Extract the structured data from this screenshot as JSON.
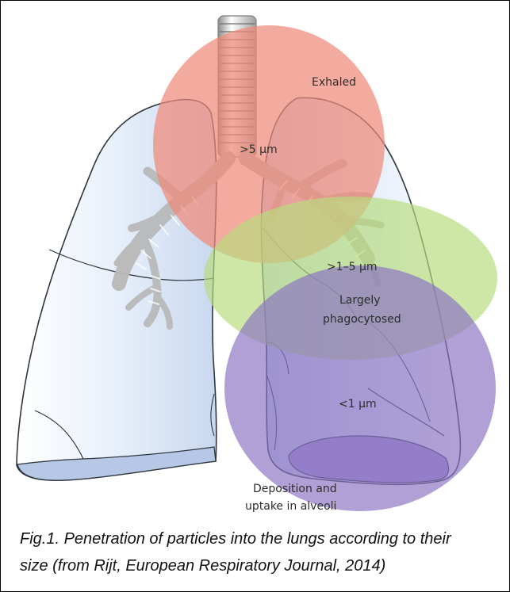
{
  "figure": {
    "labels": {
      "exhaled": "Exhaled",
      "large_size": ">5 µm",
      "medium_size": ">1–5 µm",
      "largely_phagocytosed": [
        "Largely",
        "phagocytosed"
      ],
      "small_size": "<1 µm",
      "deposition": [
        "Deposition and",
        "uptake in alveoli"
      ]
    },
    "colors": {
      "exhaled_circle": "#f08a7a",
      "phagocytosed_circle": "#b7dc7e",
      "alveoli_circle": "#8a73c2",
      "lung_fill": "#dbe6f6",
      "lung_outline": "#2f3640",
      "airway": "#b9b9b9"
    }
  },
  "caption": {
    "lines": [
      "Fig.1. Penetration of particles into the lungs according to their",
      "size (from Rijt, European Respiratory Journal, 2014)"
    ]
  }
}
